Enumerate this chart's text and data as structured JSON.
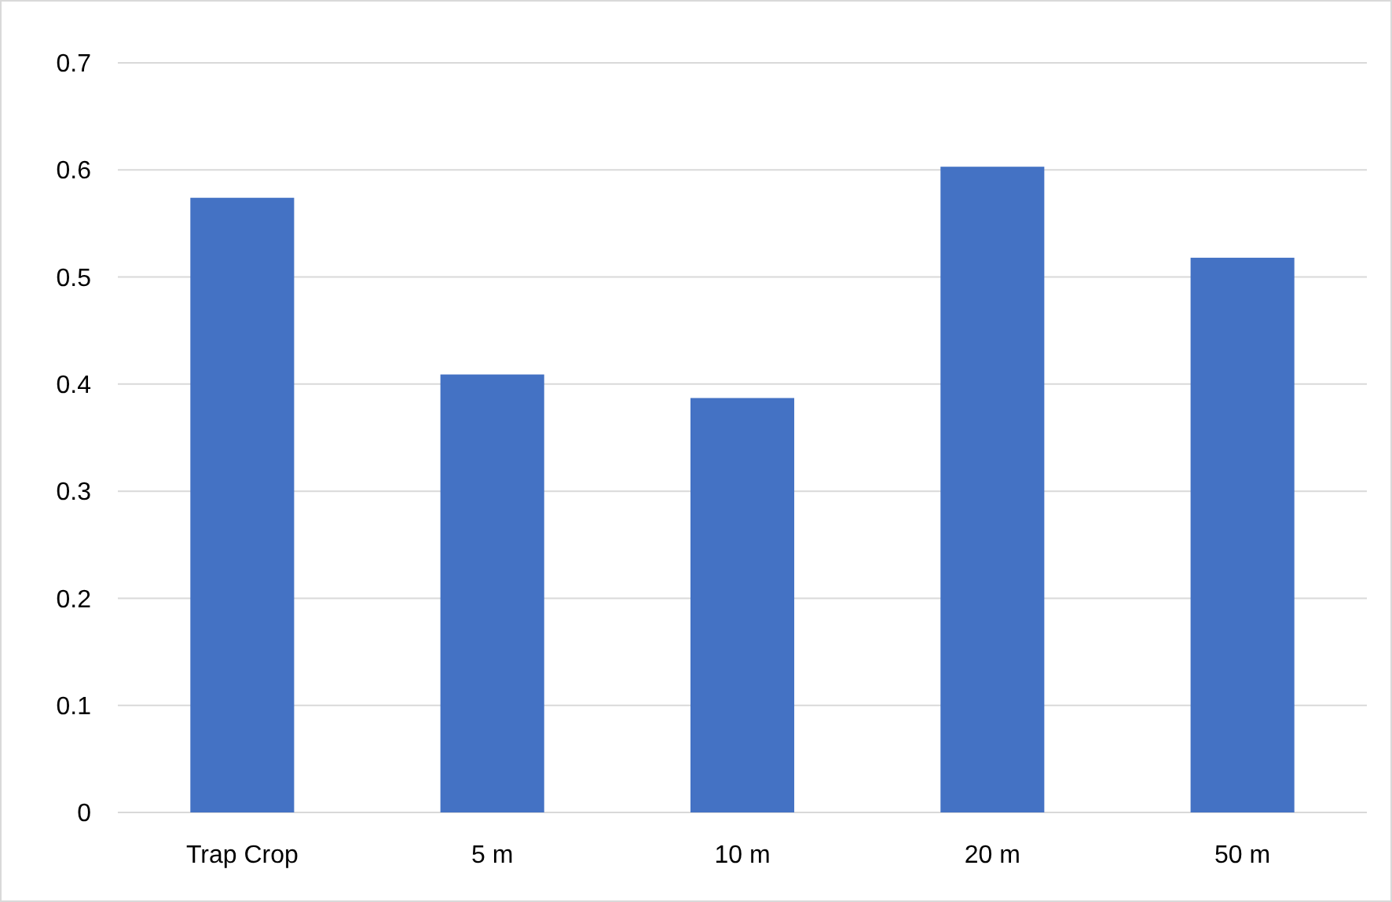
{
  "chart_data": {
    "type": "bar",
    "categories": [
      "Trap Crop",
      "5 m",
      "10 m",
      "20 m",
      "50 m"
    ],
    "values": [
      0.574,
      0.409,
      0.387,
      0.603,
      0.518
    ],
    "color": "#4472c4",
    "ylim": [
      0,
      0.7
    ],
    "yticks": [
      0,
      0.1,
      0.2,
      0.3,
      0.4,
      0.5,
      0.6,
      0.7
    ],
    "grid": "y"
  }
}
